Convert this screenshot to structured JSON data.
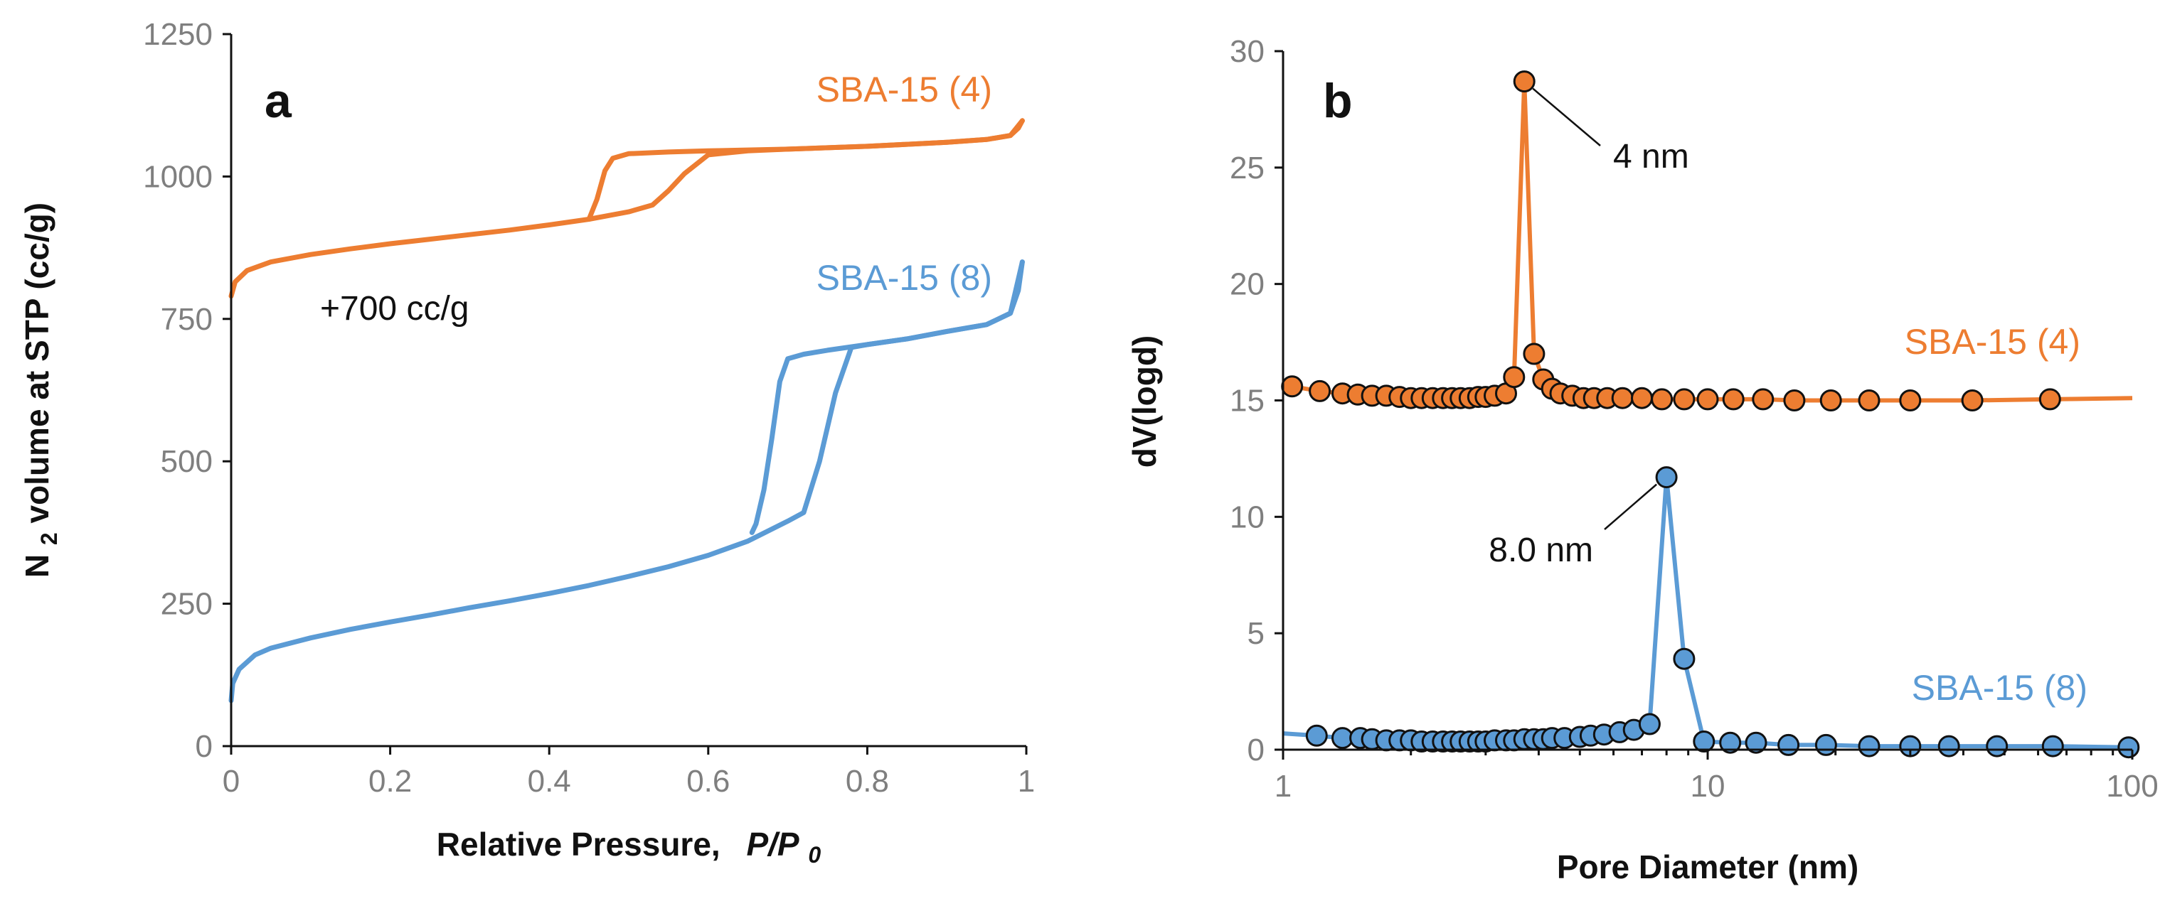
{
  "colors": {
    "orange": "#ED7D31",
    "blue": "#5B9BD5",
    "text": "#111111",
    "tick": "#7f7f7f"
  },
  "chart_data": [
    {
      "type": "line",
      "panel_label": "a",
      "title": "",
      "xlabel": "Relative Pressure,",
      "xlabel_italic": "P/P",
      "xlabel_sub": "0",
      "ylabel_prefix": "N",
      "ylabel_sub": "2",
      "ylabel_rest": " volume at STP (cc/g)",
      "xlim": [
        0,
        1
      ],
      "ylim": [
        0,
        1250
      ],
      "xticks": [
        0,
        0.2,
        0.4,
        0.6,
        0.8,
        1
      ],
      "xtick_labels": [
        "0",
        "0.2",
        "0.4",
        "0.6",
        "0.8",
        "1"
      ],
      "yticks": [
        0,
        250,
        500,
        750,
        1000,
        1250
      ],
      "ytick_labels": [
        "0",
        "250",
        "500",
        "750",
        "1000",
        "1250"
      ],
      "offset_note": "+700 cc/g",
      "series": [
        {
          "name": "SBA-15 (4)",
          "color": "#ED7D31",
          "adsorption": [
            [
              0.0,
              790
            ],
            [
              0.005,
              815
            ],
            [
              0.02,
              835
            ],
            [
              0.05,
              850
            ],
            [
              0.1,
              863
            ],
            [
              0.15,
              873
            ],
            [
              0.2,
              882
            ],
            [
              0.25,
              890
            ],
            [
              0.3,
              898
            ],
            [
              0.35,
              906
            ],
            [
              0.4,
              915
            ],
            [
              0.45,
              925
            ],
            [
              0.5,
              938
            ],
            [
              0.53,
              950
            ],
            [
              0.55,
              975
            ],
            [
              0.57,
              1005
            ],
            [
              0.6,
              1038
            ],
            [
              0.65,
              1045
            ],
            [
              0.7,
              1048
            ],
            [
              0.8,
              1053
            ],
            [
              0.9,
              1060
            ],
            [
              0.95,
              1065
            ],
            [
              0.98,
              1072
            ],
            [
              0.99,
              1085
            ],
            [
              0.995,
              1098
            ]
          ],
          "desorption": [
            [
              0.995,
              1098
            ],
            [
              0.98,
              1072
            ],
            [
              0.95,
              1065
            ],
            [
              0.9,
              1060
            ],
            [
              0.8,
              1053
            ],
            [
              0.7,
              1048
            ],
            [
              0.6,
              1045
            ],
            [
              0.55,
              1043
            ],
            [
              0.5,
              1040
            ],
            [
              0.48,
              1032
            ],
            [
              0.47,
              1010
            ],
            [
              0.46,
              960
            ],
            [
              0.45,
              925
            ]
          ]
        },
        {
          "name": "SBA-15 (8)",
          "color": "#5B9BD5",
          "adsorption": [
            [
              0.0,
              80
            ],
            [
              0.002,
              110
            ],
            [
              0.01,
              135
            ],
            [
              0.03,
              160
            ],
            [
              0.05,
              172
            ],
            [
              0.1,
              190
            ],
            [
              0.15,
              205
            ],
            [
              0.2,
              218
            ],
            [
              0.25,
              230
            ],
            [
              0.3,
              243
            ],
            [
              0.35,
              255
            ],
            [
              0.4,
              268
            ],
            [
              0.45,
              282
            ],
            [
              0.5,
              298
            ],
            [
              0.55,
              315
            ],
            [
              0.6,
              335
            ],
            [
              0.65,
              360
            ],
            [
              0.7,
              395
            ],
            [
              0.72,
              410
            ],
            [
              0.74,
              500
            ],
            [
              0.76,
              620
            ],
            [
              0.78,
              700
            ],
            [
              0.8,
              705
            ],
            [
              0.85,
              715
            ],
            [
              0.9,
              728
            ],
            [
              0.95,
              740
            ],
            [
              0.98,
              760
            ],
            [
              0.99,
              800
            ],
            [
              0.995,
              850
            ]
          ],
          "desorption": [
            [
              0.995,
              850
            ],
            [
              0.98,
              760
            ],
            [
              0.95,
              740
            ],
            [
              0.9,
              728
            ],
            [
              0.85,
              715
            ],
            [
              0.8,
              705
            ],
            [
              0.75,
              695
            ],
            [
              0.72,
              688
            ],
            [
              0.7,
              680
            ],
            [
              0.69,
              640
            ],
            [
              0.68,
              540
            ],
            [
              0.67,
              450
            ],
            [
              0.66,
              390
            ],
            [
              0.655,
              375
            ]
          ]
        }
      ]
    },
    {
      "type": "scatter",
      "panel_label": "b",
      "title": "",
      "xlabel": "Pore Diameter  (nm)",
      "ylabel": "dV(logd)",
      "xscale": "log",
      "xlim": [
        1,
        100
      ],
      "ylim": [
        0,
        30
      ],
      "xticks": [
        1,
        10,
        100
      ],
      "xtick_labels": [
        "1",
        "10",
        "100"
      ],
      "yticks": [
        0,
        5,
        10,
        15,
        20,
        25,
        30
      ],
      "ytick_labels": [
        "0",
        "5",
        "10",
        "15",
        "20",
        "25",
        "30"
      ],
      "annotations": [
        {
          "text": "4 nm",
          "x": 3.7,
          "y": 28.7
        },
        {
          "text": "8.0 nm",
          "x": 8.0,
          "y": 11.7
        }
      ],
      "series": [
        {
          "name": "SBA-15 (4)",
          "color": "#ED7D31",
          "line_end": [
            100,
            15.1
          ],
          "points": [
            [
              1.05,
              15.6
            ],
            [
              1.22,
              15.4
            ],
            [
              1.38,
              15.3
            ],
            [
              1.5,
              15.25
            ],
            [
              1.62,
              15.2
            ],
            [
              1.75,
              15.2
            ],
            [
              1.88,
              15.15
            ],
            [
              2.0,
              15.1
            ],
            [
              2.12,
              15.1
            ],
            [
              2.25,
              15.1
            ],
            [
              2.38,
              15.1
            ],
            [
              2.5,
              15.1
            ],
            [
              2.62,
              15.1
            ],
            [
              2.75,
              15.1
            ],
            [
              2.88,
              15.15
            ],
            [
              3.0,
              15.15
            ],
            [
              3.15,
              15.2
            ],
            [
              3.35,
              15.3
            ],
            [
              3.5,
              16.0
            ],
            [
              3.7,
              28.7
            ],
            [
              3.9,
              17.0
            ],
            [
              4.1,
              15.9
            ],
            [
              4.3,
              15.5
            ],
            [
              4.5,
              15.3
            ],
            [
              4.8,
              15.2
            ],
            [
              5.1,
              15.1
            ],
            [
              5.4,
              15.1
            ],
            [
              5.8,
              15.1
            ],
            [
              6.3,
              15.1
            ],
            [
              7.0,
              15.1
            ],
            [
              7.8,
              15.05
            ],
            [
              8.8,
              15.05
            ],
            [
              10.0,
              15.05
            ],
            [
              11.5,
              15.05
            ],
            [
              13.5,
              15.05
            ],
            [
              16.0,
              15.0
            ],
            [
              19.5,
              15.0
            ],
            [
              24.0,
              15.0
            ],
            [
              30.0,
              15.0
            ],
            [
              42.0,
              15.0
            ],
            [
              64.0,
              15.05
            ]
          ]
        },
        {
          "name": "SBA-15 (8)",
          "color": "#5B9BD5",
          "line_start": [
            1,
            0.7
          ],
          "line_end": [
            100,
            0.2
          ],
          "points": [
            [
              1.2,
              0.6
            ],
            [
              1.38,
              0.5
            ],
            [
              1.52,
              0.5
            ],
            [
              1.62,
              0.45
            ],
            [
              1.75,
              0.4
            ],
            [
              1.88,
              0.4
            ],
            [
              2.0,
              0.4
            ],
            [
              2.12,
              0.35
            ],
            [
              2.25,
              0.35
            ],
            [
              2.38,
              0.35
            ],
            [
              2.5,
              0.35
            ],
            [
              2.62,
              0.35
            ],
            [
              2.75,
              0.35
            ],
            [
              2.88,
              0.35
            ],
            [
              3.0,
              0.35
            ],
            [
              3.15,
              0.4
            ],
            [
              3.35,
              0.4
            ],
            [
              3.5,
              0.4
            ],
            [
              3.7,
              0.45
            ],
            [
              3.9,
              0.45
            ],
            [
              4.1,
              0.45
            ],
            [
              4.3,
              0.5
            ],
            [
              4.6,
              0.5
            ],
            [
              5.0,
              0.55
            ],
            [
              5.3,
              0.6
            ],
            [
              5.7,
              0.65
            ],
            [
              6.2,
              0.75
            ],
            [
              6.7,
              0.85
            ],
            [
              7.3,
              1.1
            ],
            [
              8.0,
              11.7
            ],
            [
              8.8,
              3.9
            ],
            [
              9.8,
              0.35
            ],
            [
              11.3,
              0.3
            ],
            [
              13.0,
              0.3
            ],
            [
              15.5,
              0.2
            ],
            [
              19.0,
              0.2
            ],
            [
              24.0,
              0.15
            ],
            [
              30.0,
              0.15
            ],
            [
              37.0,
              0.15
            ],
            [
              48.0,
              0.15
            ],
            [
              65.0,
              0.15
            ],
            [
              98.0,
              0.1
            ]
          ]
        }
      ]
    }
  ]
}
